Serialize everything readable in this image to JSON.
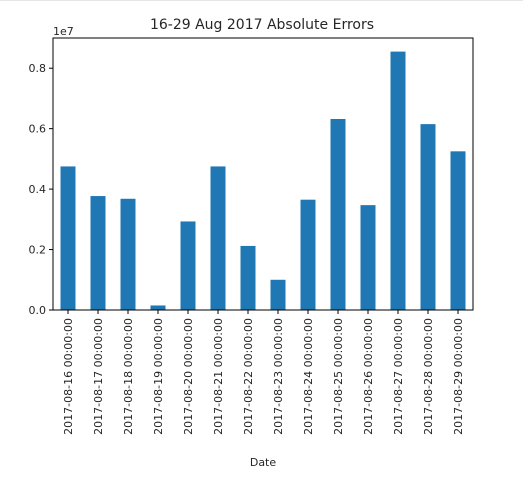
{
  "chart_data": {
    "type": "bar",
    "title": "16-29 Aug 2017 Absolute Errors",
    "xlabel": "Date",
    "ylabel": "",
    "y_scale_label": "1e7",
    "y_scale": 10000000,
    "ylim": [
      0,
      0.9
    ],
    "y_ticks": [
      0.0,
      0.2,
      0.4,
      0.6,
      0.8
    ],
    "y_tick_labels": [
      "0.0",
      "0.2",
      "0.4",
      "0.6",
      "0.8"
    ],
    "grid": false,
    "bar_color": "#1f77b4",
    "categories": [
      "2017-08-16 00:00:00",
      "2017-08-17 00:00:00",
      "2017-08-18 00:00:00",
      "2017-08-19 00:00:00",
      "2017-08-20 00:00:00",
      "2017-08-21 00:00:00",
      "2017-08-22 00:00:00",
      "2017-08-23 00:00:00",
      "2017-08-24 00:00:00",
      "2017-08-25 00:00:00",
      "2017-08-26 00:00:00",
      "2017-08-27 00:00:00",
      "2017-08-28 00:00:00",
      "2017-08-29 00:00:00"
    ],
    "values": [
      0.475,
      0.377,
      0.368,
      0.015,
      0.293,
      0.475,
      0.212,
      0.1,
      0.365,
      0.632,
      0.347,
      0.855,
      0.615,
      0.525
    ]
  }
}
